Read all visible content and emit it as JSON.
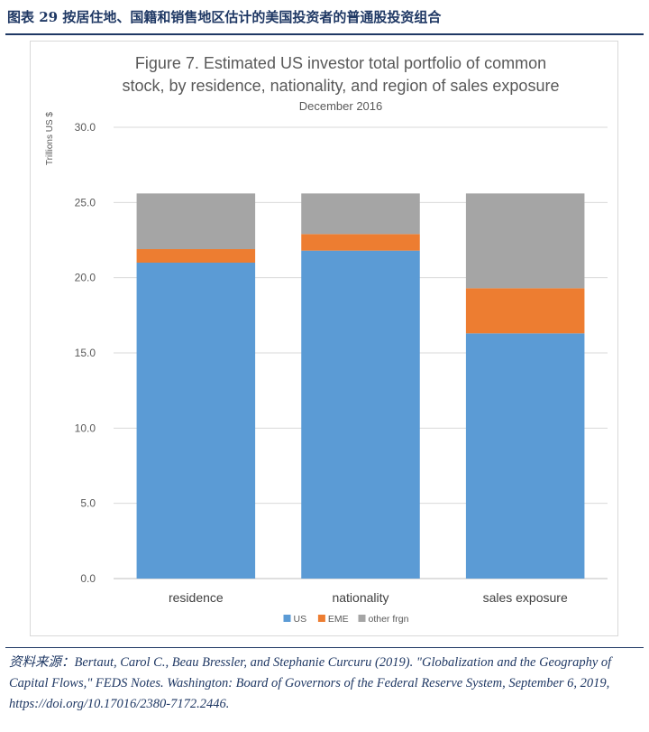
{
  "header": {
    "title": "图表 29   按居住地、国籍和销售地区估计的美国投资者的普通股投资组合"
  },
  "chart_data": {
    "type": "bar",
    "stacked": true,
    "title_line1": "Figure 7.  Estimated US investor total portfolio of common",
    "title_line2": "stock, by residence, nationality, and region of sales exposure",
    "subtitle": "December 2016",
    "ylabel": "Trillions US $",
    "xlabel": "",
    "ylim": [
      0,
      30
    ],
    "yticks": [
      "0.0",
      "5.0",
      "10.0",
      "15.0",
      "20.0",
      "25.0",
      "30.0"
    ],
    "ytick_values": [
      0,
      5,
      10,
      15,
      20,
      25,
      30
    ],
    "categories": [
      "residence",
      "nationality",
      "sales exposure"
    ],
    "series": [
      {
        "name": "US",
        "color": "#5b9bd5",
        "values": [
          21.0,
          21.8,
          16.3
        ]
      },
      {
        "name": "EME",
        "color": "#ed7d31",
        "values": [
          0.9,
          1.1,
          3.0
        ]
      },
      {
        "name": "other frgn",
        "color": "#a5a5a5",
        "values": [
          3.7,
          2.7,
          6.3
        ]
      }
    ],
    "grid": true,
    "legend_position": "bottom"
  },
  "source": {
    "label": "资料来源：",
    "text": "Bertaut, Carol C., Beau Bressler, and Stephanie Curcuru (2019). \"Globalization and the Geography of Capital Flows,\" FEDS Notes. Washington: Board of Governors of the Federal Reserve System, September 6, 2019, https://doi.org/10.17016/2380-7172.2446."
  }
}
